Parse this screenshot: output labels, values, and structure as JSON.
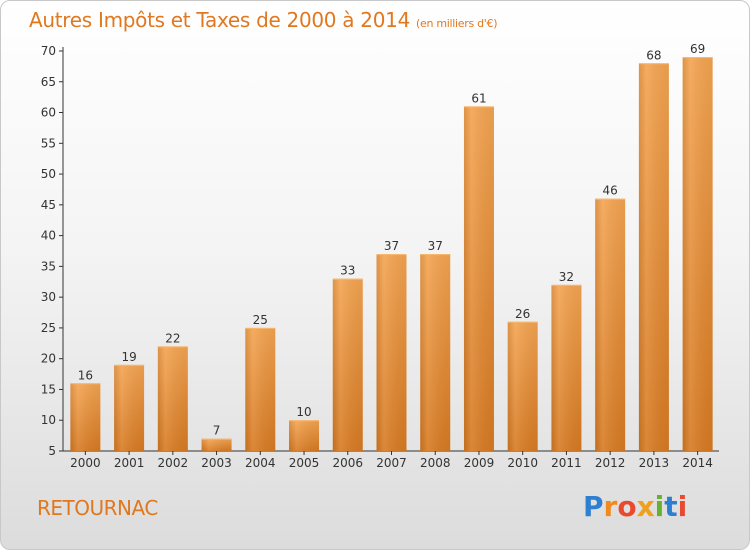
{
  "header": {
    "title": "Autres Impôts et Taxes de 2000 à 2014",
    "subtitle": "(en milliers d'€)"
  },
  "footer": {
    "city": "RETOURNAC",
    "logo_text": "Proxiti",
    "logo_colors": [
      "#2f7fd0",
      "#f08a1d",
      "#e84a2f",
      "#f0a020",
      "#66b22e",
      "#2f7fd0",
      "#e84a2f"
    ]
  },
  "colors": {
    "bar_light": "#f4a451",
    "bar_dark": "#d77a22",
    "accent": "#e07820",
    "axis": "#333333",
    "grid": "#cfcfcf"
  },
  "chart_data": {
    "type": "bar",
    "title": "Autres Impôts et Taxes de 2000 à 2014",
    "subtitle": "(en milliers d'€)",
    "categories": [
      "2000",
      "2001",
      "2002",
      "2003",
      "2004",
      "2005",
      "2006",
      "2007",
      "2008",
      "2009",
      "2010",
      "2011",
      "2012",
      "2013",
      "2014"
    ],
    "values": [
      16,
      19,
      22,
      7,
      25,
      10,
      33,
      37,
      37,
      61,
      26,
      32,
      46,
      68,
      69
    ],
    "ylim": [
      5,
      70
    ],
    "yticks": [
      5,
      10,
      15,
      20,
      25,
      30,
      35,
      40,
      45,
      50,
      55,
      60,
      65,
      70
    ],
    "grid": false
  }
}
